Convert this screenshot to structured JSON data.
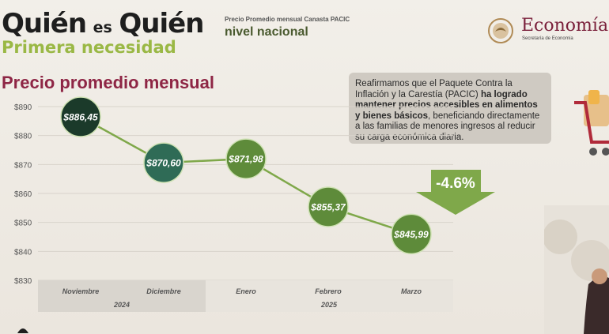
{
  "header": {
    "brand_title_part1": "Quién",
    "brand_title_connector": "es",
    "brand_title_part2": "Quién",
    "brand_subtitle": "Primera necesidad",
    "caption": "Precio Promedio mensual Canasta PACIC",
    "level": "nivel nacional",
    "ministry_name": "Economía",
    "ministry_subtitle": "Secretaría de Economía"
  },
  "section_title": "Precio promedio mensual",
  "message": {
    "part1": "Reafirmamos que el Paquete Contra la Inflación y la Carestía (PACIC) ",
    "bold": "ha logrado mantener precios accesibles en alimentos y bienes básicos",
    "part2": ", beneficiando directamente a las familias de menores ingresos al reducir su carga económica diaria."
  },
  "change_label": "-4.6%",
  "colors": {
    "brand_green": "#9ab845",
    "title_maroon": "#8e2645",
    "line": "#7fa84a",
    "marker_dark": "#1b3a2a",
    "marker_teal": "#2f6b56",
    "marker_green": "#5e8b3a",
    "axis_band": "#d9d5ce"
  },
  "chart_data": {
    "type": "line",
    "categories": [
      "Noviembre",
      "Diciembre",
      "Enero",
      "Febrero",
      "Marzo"
    ],
    "year_groups": [
      {
        "label": "2024",
        "span": 2
      },
      {
        "label": "2025",
        "span": 3
      }
    ],
    "values": [
      886.45,
      870.6,
      871.98,
      855.37,
      845.99
    ],
    "data_labels": [
      "$886,45",
      "$870,60",
      "$871,98",
      "$855,37",
      "$845,99"
    ],
    "y_ticks": [
      "$890",
      "$880",
      "$870",
      "$860",
      "$850",
      "$840",
      "$830"
    ],
    "y_tick_values": [
      890,
      880,
      870,
      860,
      850,
      840,
      830
    ],
    "ylim": [
      830,
      890
    ],
    "grid": true,
    "annotation": "-4.6%"
  }
}
